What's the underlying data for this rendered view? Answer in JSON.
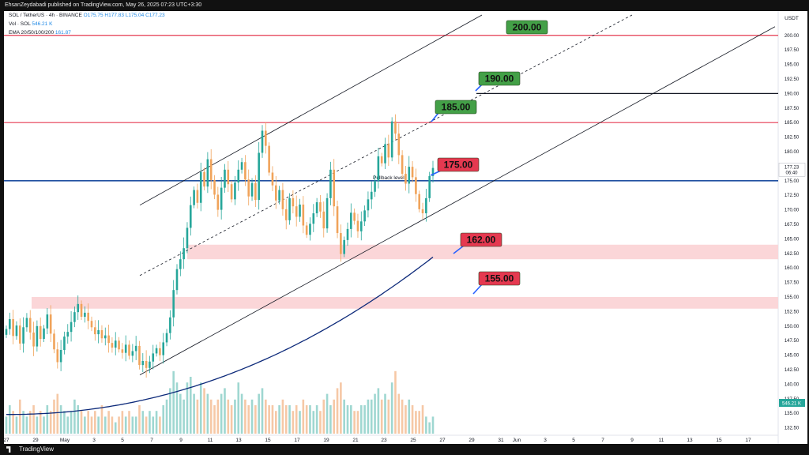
{
  "header": {
    "text": "EhsanZeydabadi published on TradingView.com, May 26, 2025 07:23 UTC+3:30"
  },
  "footer": {
    "brand": "TradingView"
  },
  "legend": {
    "symbol": "SOL / TetherUS · 4h · BINANCE",
    "ohlc": "O175.75  H177.83  L175.04  C177.23",
    "volume_label": "Vol · SOL",
    "volume_value": "546.21 K",
    "ema_label": "EMA 20/50/100/200",
    "ema_value": "161.87"
  },
  "colors": {
    "up": "#26a69a",
    "down": "#f0a35a",
    "ema": "#0d2a7a",
    "resistance": "#e53950",
    "support_zone": "#fbd6d8",
    "pullback": "#1f4fa0",
    "green_label": "#43a047",
    "red_label": "#e53950"
  },
  "chart_data": {
    "type": "candlestick",
    "symbol": "SOL / TetherUS",
    "timeframe": "4h",
    "exchange": "BINANCE",
    "currency": "USDT",
    "x_ticks": [
      "27",
      "29",
      "May",
      "3",
      "5",
      "7",
      "9",
      "11",
      "13",
      "15",
      "17",
      "19",
      "21",
      "23",
      "25",
      "27",
      "29",
      "31",
      "Jun",
      "3",
      "5",
      "7",
      "9",
      "11",
      "13",
      "15",
      "17"
    ],
    "y_ticks": [
      "200.00",
      "197.50",
      "195.00",
      "192.50",
      "190.00",
      "187.50",
      "185.00",
      "182.50",
      "180.00",
      "177.50",
      "175.00",
      "172.50",
      "170.00",
      "167.50",
      "165.00",
      "162.50",
      "160.00",
      "157.50",
      "155.00",
      "152.50",
      "150.00",
      "147.50",
      "145.00",
      "142.50",
      "140.00",
      "137.50",
      "135.00",
      "132.50"
    ],
    "ylim": [
      131.5,
      203.5
    ],
    "last_price": "177.23",
    "last_price_countdown": "06:40",
    "volume_last": "546.21 K",
    "horizontal_lines": [
      {
        "price": 200.0,
        "color": "#e53950"
      },
      {
        "price": 190.0,
        "color": "#131722"
      },
      {
        "price": 185.0,
        "color": "#e53950"
      },
      {
        "price": 175.0,
        "color": "#1f4fa0",
        "label": "Pullback level"
      }
    ],
    "zones": [
      {
        "from": 161.5,
        "to": 164.0
      },
      {
        "from": 153.0,
        "to": 155.0
      }
    ],
    "targets": [
      {
        "label": "200.00",
        "kind": "green"
      },
      {
        "label": "190.00",
        "kind": "green"
      },
      {
        "label": "185.00",
        "kind": "green"
      },
      {
        "label": "175.00",
        "kind": "red"
      },
      {
        "label": "162.00",
        "kind": "red"
      },
      {
        "label": "155.00",
        "kind": "red"
      }
    ],
    "ema_last": 161.87,
    "series_close": [
      149.5,
      151.2,
      148.3,
      150.1,
      147.0,
      149.8,
      151.4,
      148.9,
      146.5,
      150.0,
      147.8,
      149.6,
      152.0,
      148.7,
      146.0,
      143.8,
      145.9,
      148.2,
      149.0,
      150.7,
      152.4,
      153.8,
      151.6,
      152.3,
      150.9,
      149.8,
      148.6,
      149.3,
      147.9,
      148.4,
      147.1,
      146.3,
      147.5,
      146.0,
      145.4,
      146.8,
      144.9,
      145.7,
      146.6,
      143.3,
      144.0,
      142.8,
      143.9,
      145.3,
      146.2,
      145.0,
      147.2,
      148.8,
      151.5,
      156.2,
      159.8,
      161.5,
      163.4,
      166.9,
      170.8,
      173.4,
      171.2,
      176.5,
      174.0,
      178.7,
      175.1,
      172.6,
      170.0,
      173.8,
      176.9,
      174.4,
      171.8,
      174.7,
      176.9,
      178.2,
      175.2,
      172.3,
      174.6,
      171.7,
      179.8,
      183.6,
      181.0,
      176.4,
      174.2,
      171.6,
      173.4,
      170.1,
      168.2,
      172.0,
      170.6,
      168.8,
      170.9,
      167.3,
      165.7,
      167.6,
      169.4,
      171.3,
      169.7,
      166.8,
      172.0,
      176.9,
      170.6,
      166.0,
      162.4,
      164.8,
      166.7,
      169.5,
      168.1,
      166.3,
      168.0,
      169.9,
      171.8,
      173.1,
      175.0,
      179.2,
      178.0,
      181.3,
      179.0,
      185.2,
      183.1,
      179.4,
      176.2,
      174.5,
      177.4,
      175.6,
      172.7,
      170.1,
      169.4,
      172.0,
      175.8,
      177.2
    ],
    "volume": [
      3,
      5,
      4,
      3,
      6,
      4,
      3,
      4,
      5,
      3,
      4,
      3,
      5,
      4,
      6,
      7,
      5,
      4,
      3,
      4,
      6,
      5,
      4,
      3,
      4,
      3,
      4,
      3,
      5,
      3,
      4,
      3,
      2,
      3,
      4,
      3,
      4,
      3,
      3,
      5,
      4,
      3,
      4,
      3,
      4,
      3,
      5,
      6,
      8,
      11,
      9,
      7,
      6,
      9,
      10,
      7,
      6,
      9,
      8,
      7,
      6,
      5,
      6,
      7,
      8,
      6,
      5,
      6,
      9,
      7,
      6,
      5,
      6,
      5,
      7,
      8,
      6,
      5,
      5,
      4,
      5,
      6,
      5,
      5,
      4,
      5,
      4,
      6,
      5,
      5,
      4,
      5,
      4,
      6,
      7,
      5,
      6,
      8,
      9,
      6,
      5,
      5,
      4,
      4,
      5,
      5,
      6,
      6,
      7,
      8,
      6,
      7,
      6,
      9,
      11,
      7,
      6,
      5,
      6,
      5,
      4,
      4,
      5,
      3,
      2,
      3
    ]
  }
}
